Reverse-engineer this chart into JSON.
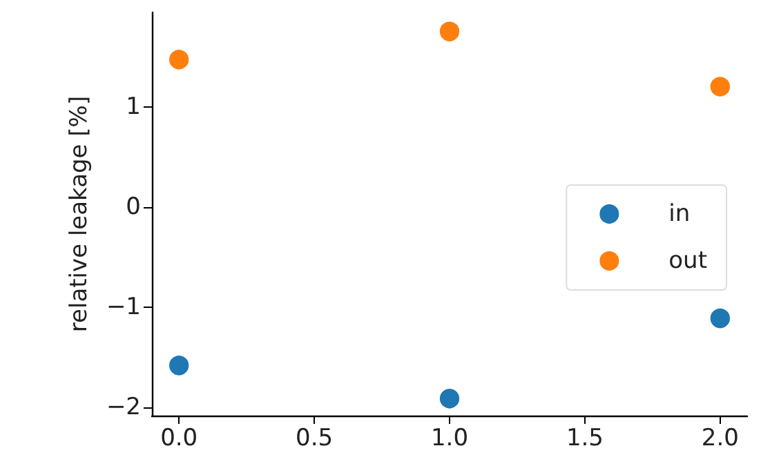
{
  "chart_data": {
    "type": "scatter",
    "ylabel": "relative leakage [%]",
    "x": [
      0,
      1,
      2
    ],
    "series": [
      {
        "name": "in",
        "color": "#1f77b4",
        "values": [
          -1.58,
          -1.91,
          -1.11
        ]
      },
      {
        "name": "out",
        "color": "#ff7f0e",
        "values": [
          1.47,
          1.75,
          1.2
        ]
      }
    ],
    "xlim": [
      -0.1,
      2.1
    ],
    "xticks": [
      {
        "value": 0,
        "label": "0.0"
      },
      {
        "value": 0.5,
        "label": "0.5"
      },
      {
        "value": 1,
        "label": "1.0"
      },
      {
        "value": 1.5,
        "label": "1.5"
      },
      {
        "value": 2,
        "label": "2.0"
      }
    ],
    "ylim": [
      -2.08,
      1.94
    ],
    "yticks": [
      -2,
      -1,
      0,
      1
    ],
    "grid": false,
    "legend": "right",
    "marker": "circle"
  }
}
